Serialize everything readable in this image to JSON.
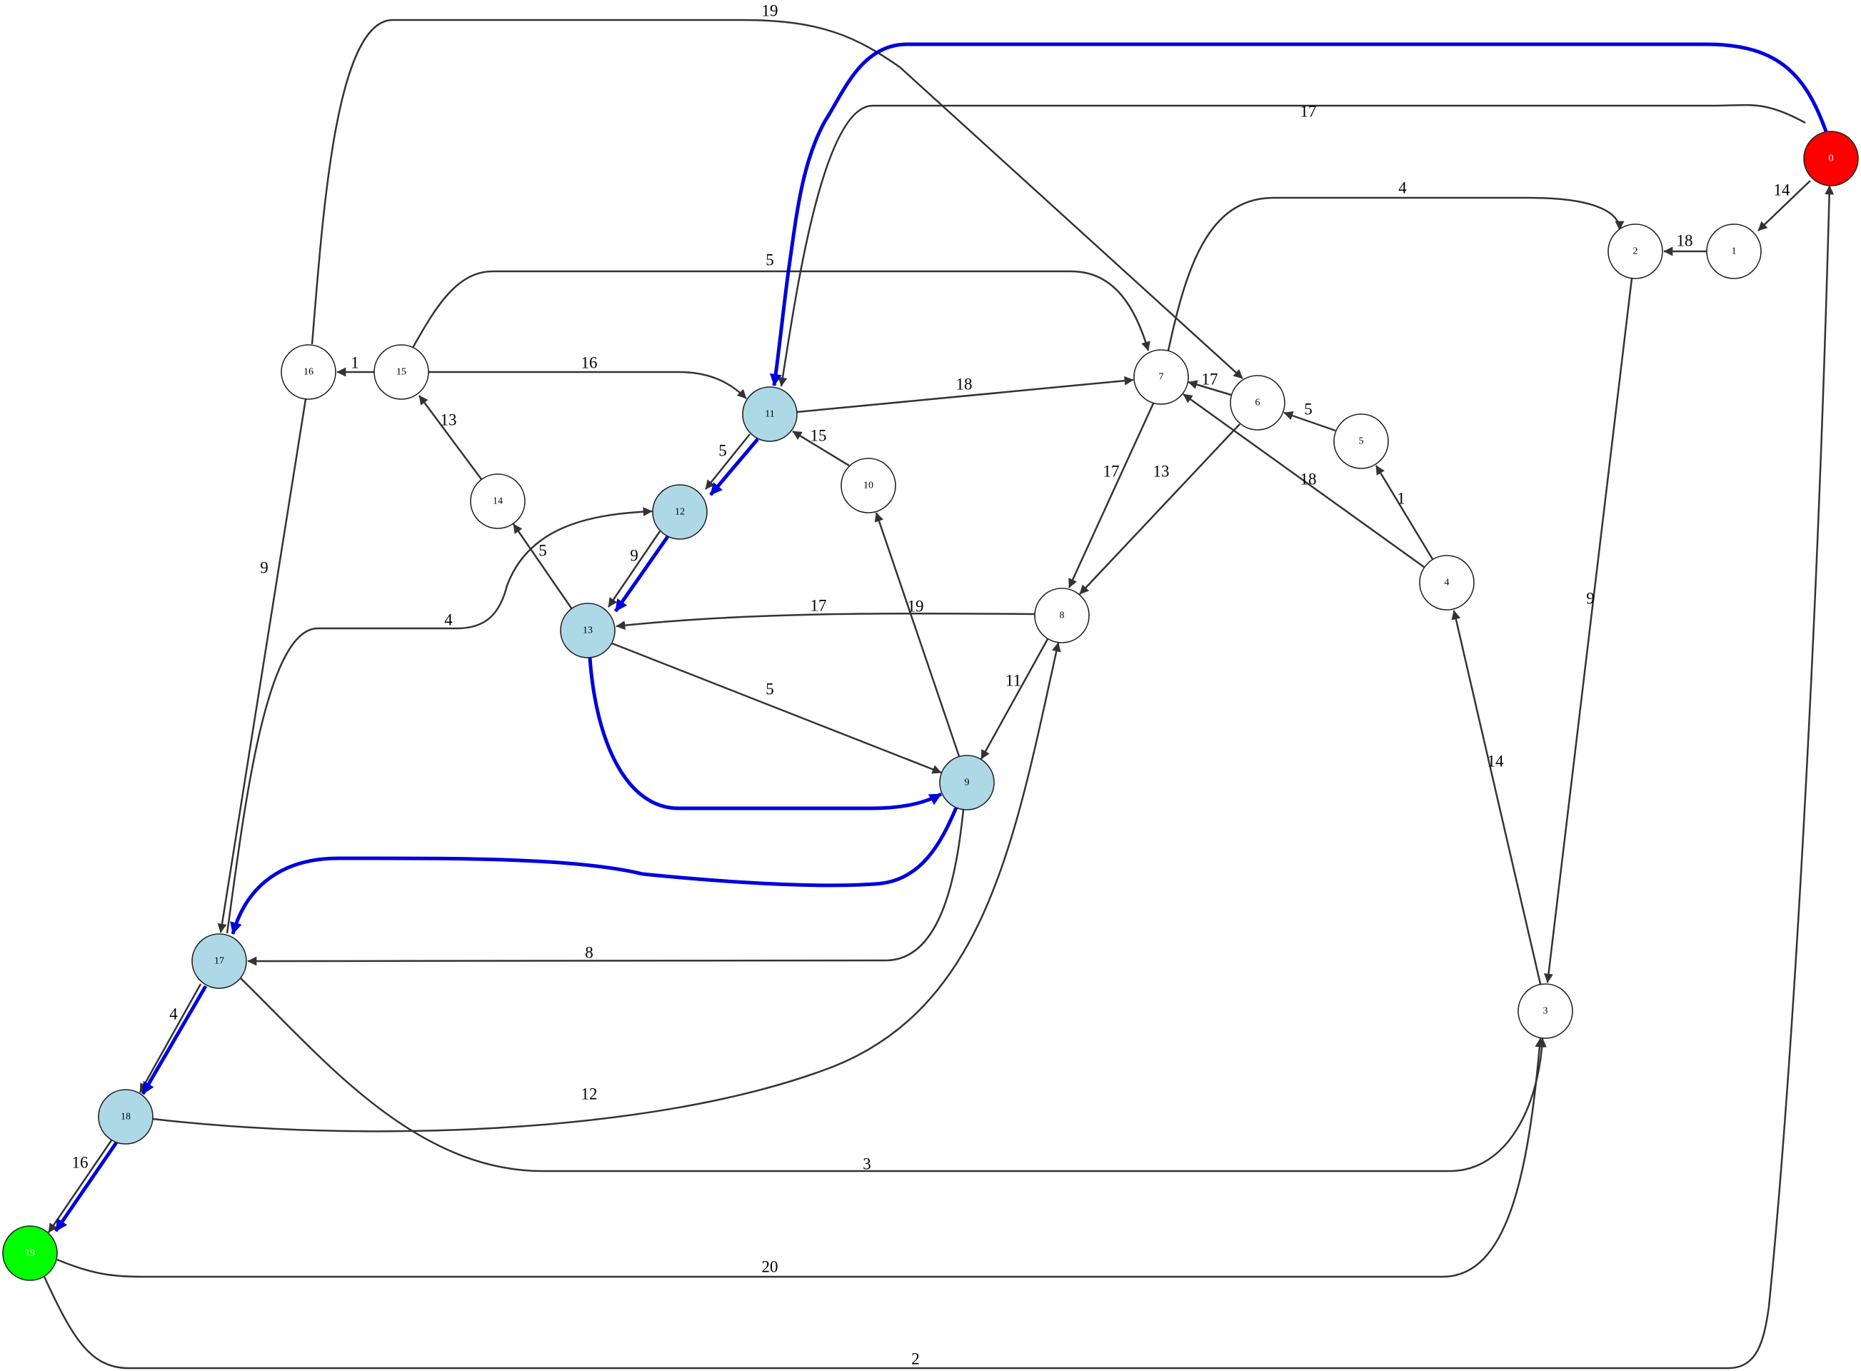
{
  "graph": {
    "colors": {
      "default_fill": "#ffffff",
      "path_fill": "#add8e6",
      "start_fill": "#ff0000",
      "end_fill": "#00ff00",
      "edge": "#333333",
      "path_edge": "#0000dd"
    },
    "nodes": [
      {
        "id": "0",
        "label": "0",
        "role": "start"
      },
      {
        "id": "1",
        "label": "1",
        "role": "default"
      },
      {
        "id": "2",
        "label": "2",
        "role": "default"
      },
      {
        "id": "3",
        "label": "3",
        "role": "default"
      },
      {
        "id": "4",
        "label": "4",
        "role": "default"
      },
      {
        "id": "5",
        "label": "5",
        "role": "default"
      },
      {
        "id": "6",
        "label": "6",
        "role": "default"
      },
      {
        "id": "7",
        "label": "7",
        "role": "default"
      },
      {
        "id": "8",
        "label": "8",
        "role": "default"
      },
      {
        "id": "9",
        "label": "9",
        "role": "path"
      },
      {
        "id": "10",
        "label": "10",
        "role": "default"
      },
      {
        "id": "11",
        "label": "11",
        "role": "path"
      },
      {
        "id": "12",
        "label": "12",
        "role": "path"
      },
      {
        "id": "13",
        "label": "13",
        "role": "path"
      },
      {
        "id": "14",
        "label": "14",
        "role": "default"
      },
      {
        "id": "15",
        "label": "15",
        "role": "default"
      },
      {
        "id": "16",
        "label": "16",
        "role": "default"
      },
      {
        "id": "17",
        "label": "17",
        "role": "path"
      },
      {
        "id": "18",
        "label": "18",
        "role": "path"
      },
      {
        "id": "19",
        "label": "19",
        "role": "end"
      }
    ],
    "edges": [
      {
        "from": "0",
        "to": "1",
        "weight": "14",
        "on_path": false
      },
      {
        "from": "0",
        "to": "11",
        "weight": "17",
        "on_path": false
      },
      {
        "from": "0",
        "to": "11",
        "weight": "",
        "on_path": true
      },
      {
        "from": "1",
        "to": "2",
        "weight": "18",
        "on_path": false
      },
      {
        "from": "2",
        "to": "3",
        "weight": "9",
        "on_path": false
      },
      {
        "from": "3",
        "to": "4",
        "weight": "14",
        "on_path": false
      },
      {
        "from": "4",
        "to": "5",
        "weight": "1",
        "on_path": false
      },
      {
        "from": "4",
        "to": "7",
        "weight": "18",
        "on_path": false
      },
      {
        "from": "5",
        "to": "6",
        "weight": "5",
        "on_path": false
      },
      {
        "from": "6",
        "to": "7",
        "weight": "17",
        "on_path": false
      },
      {
        "from": "6",
        "to": "8",
        "weight": "13",
        "on_path": false
      },
      {
        "from": "7",
        "to": "2",
        "weight": "4",
        "on_path": false
      },
      {
        "from": "7",
        "to": "8",
        "weight": "17",
        "on_path": false
      },
      {
        "from": "8",
        "to": "9",
        "weight": "11",
        "on_path": false
      },
      {
        "from": "8",
        "to": "13",
        "weight": "17",
        "on_path": false
      },
      {
        "from": "9",
        "to": "10",
        "weight": "19",
        "on_path": false
      },
      {
        "from": "9",
        "to": "17",
        "weight": "8",
        "on_path": false
      },
      {
        "from": "9",
        "to": "17",
        "weight": "",
        "on_path": true
      },
      {
        "from": "10",
        "to": "11",
        "weight": "15",
        "on_path": false
      },
      {
        "from": "11",
        "to": "7",
        "weight": "18",
        "on_path": false
      },
      {
        "from": "11",
        "to": "12",
        "weight": "5",
        "on_path": false
      },
      {
        "from": "11",
        "to": "12",
        "weight": "",
        "on_path": true
      },
      {
        "from": "12",
        "to": "13",
        "weight": "9",
        "on_path": false
      },
      {
        "from": "12",
        "to": "13",
        "weight": "",
        "on_path": true
      },
      {
        "from": "13",
        "to": "9",
        "weight": "5",
        "on_path": false
      },
      {
        "from": "13",
        "to": "9",
        "weight": "",
        "on_path": true
      },
      {
        "from": "13",
        "to": "14",
        "weight": "5",
        "on_path": false
      },
      {
        "from": "14",
        "to": "15",
        "weight": "13",
        "on_path": false
      },
      {
        "from": "15",
        "to": "16",
        "weight": "1",
        "on_path": false
      },
      {
        "from": "15",
        "to": "11",
        "weight": "16",
        "on_path": false
      },
      {
        "from": "15",
        "to": "7",
        "weight": "5",
        "on_path": false
      },
      {
        "from": "16",
        "to": "6",
        "weight": "19",
        "on_path": false
      },
      {
        "from": "16",
        "to": "17",
        "weight": "9",
        "on_path": false
      },
      {
        "from": "17",
        "to": "12",
        "weight": "4",
        "on_path": false
      },
      {
        "from": "17",
        "to": "18",
        "weight": "4",
        "on_path": false
      },
      {
        "from": "17",
        "to": "18",
        "weight": "",
        "on_path": true
      },
      {
        "from": "17",
        "to": "3",
        "weight": "3",
        "on_path": false
      },
      {
        "from": "18",
        "to": "8",
        "weight": "12",
        "on_path": false
      },
      {
        "from": "18",
        "to": "19",
        "weight": "16",
        "on_path": false
      },
      {
        "from": "18",
        "to": "19",
        "weight": "",
        "on_path": true
      },
      {
        "from": "19",
        "to": "3",
        "weight": "20",
        "on_path": false
      },
      {
        "from": "19",
        "to": "0",
        "weight": "2",
        "on_path": false
      }
    ]
  }
}
